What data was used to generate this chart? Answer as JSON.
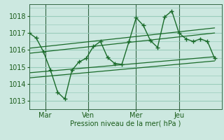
{
  "xlabel": "Pression niveau de la mer( hPa )",
  "bg_color": "#cce8e0",
  "grid_color": "#99ccbb",
  "line_color": "#1a6b2a",
  "tick_label_color": "#1a5c1a",
  "axis_label_color": "#1a5c1a",
  "ylim": [
    1012.5,
    1018.7
  ],
  "xlim": [
    0,
    216
  ],
  "day_ticks": [
    18,
    66,
    120,
    168
  ],
  "day_labels": [
    "Mar",
    "Ven",
    "Mer",
    "Jeu"
  ],
  "day_vlines": [
    18,
    66,
    120,
    168
  ],
  "x_main": [
    0,
    8,
    16,
    24,
    32,
    40,
    48,
    56,
    64,
    72,
    80,
    88,
    96,
    104,
    112,
    120,
    128,
    136,
    144,
    152,
    160,
    168,
    176,
    184,
    192,
    200,
    208
  ],
  "y_main": [
    1017.0,
    1016.7,
    1015.9,
    1014.8,
    1013.5,
    1013.1,
    1014.8,
    1015.3,
    1015.5,
    1016.2,
    1016.5,
    1015.55,
    1015.2,
    1015.15,
    1016.5,
    1017.9,
    1017.45,
    1016.55,
    1016.15,
    1017.95,
    1018.3,
    1017.0,
    1016.65,
    1016.5,
    1016.65,
    1016.5,
    1015.5
  ],
  "trend_lines": [
    {
      "x": [
        0,
        208
      ],
      "y": [
        1016.1,
        1017.3
      ]
    },
    {
      "x": [
        0,
        208
      ],
      "y": [
        1015.8,
        1017.0
      ]
    },
    {
      "x": [
        0,
        208
      ],
      "y": [
        1014.65,
        1015.6
      ]
    },
    {
      "x": [
        0,
        208
      ],
      "y": [
        1014.35,
        1015.35
      ]
    }
  ],
  "yticks": [
    1013,
    1014,
    1015,
    1016,
    1017,
    1018
  ],
  "vline_color": "#336644",
  "figsize": [
    3.2,
    2.0
  ],
  "dpi": 100
}
